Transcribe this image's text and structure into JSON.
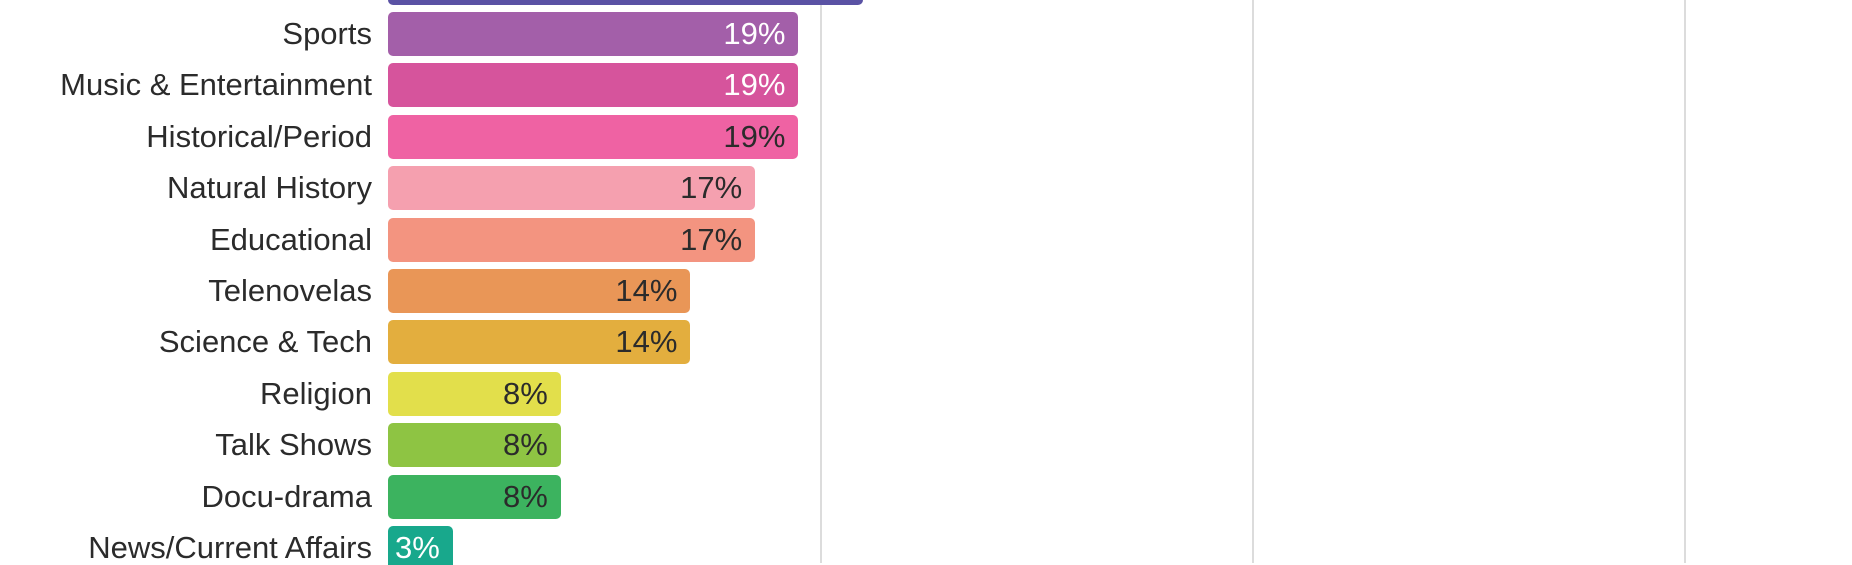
{
  "chart_data": {
    "type": "bar",
    "orientation": "horizontal",
    "title": "",
    "categories": [
      "Sports",
      "Music & Entertainment",
      "Historical/Period",
      "Natural History",
      "Educational",
      "Telenovelas",
      "Science & Tech",
      "Religion",
      "Talk Shows",
      "Docu-drama",
      "News/Current Affairs"
    ],
    "values": [
      19,
      19,
      19,
      17,
      17,
      14,
      14,
      8,
      8,
      8,
      3
    ],
    "bar_labels": [
      "19%",
      "19%",
      "19%",
      "17%",
      "17%",
      "14%",
      "14%",
      "8%",
      "8%",
      "8%",
      "3%"
    ],
    "unit": "%",
    "bar_colors": [
      "#a35fa9",
      "#d6549c",
      "#ef62a3",
      "#f5a0af",
      "#f39480",
      "#e99657",
      "#e3ae3e",
      "#e2df4b",
      "#8ec443",
      "#3cb35f",
      "#18a88c"
    ],
    "value_label_colors": [
      "#ffffff",
      "#ffffff",
      "#2b2b2b",
      "#2b2b2b",
      "#2b2b2b",
      "#2b2b2b",
      "#2b2b2b",
      "#2b2b2b",
      "#2b2b2b",
      "#2b2b2b",
      "#ffffff"
    ],
    "partial_top_bar": {
      "color": "#5a52a4",
      "approx_value_pct": 22,
      "label_visible": false,
      "clipped_by_top_edge": true
    },
    "axis": {
      "x_gridlines_pct": [
        20,
        40,
        60
      ],
      "gridline_color": "#dcdcdc",
      "tick_labels_visible": false
    },
    "legend": null,
    "category_text_color": "#2b2b2b"
  }
}
